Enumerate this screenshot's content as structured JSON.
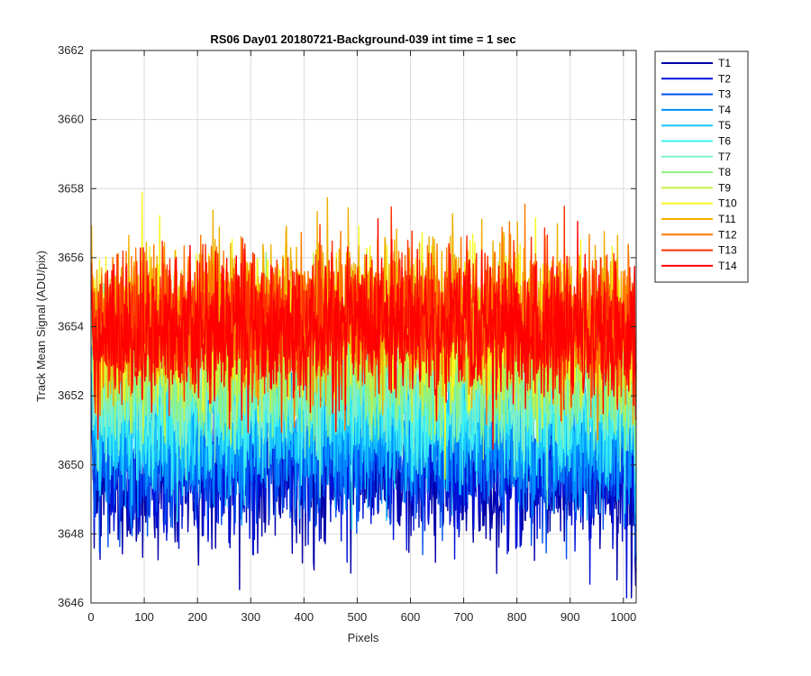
{
  "chart_data": {
    "type": "line",
    "title": "RS06 Day01 20180721-Background-039 int time = 1 sec",
    "xlabel": "Pixels",
    "ylabel": "Track Mean Signal (ADU/pix)",
    "xlim": [
      0,
      1024
    ],
    "ylim": [
      3646,
      3662
    ],
    "xticks": [
      0,
      100,
      200,
      300,
      400,
      500,
      600,
      700,
      800,
      900,
      1000
    ],
    "yticks": [
      3646,
      3648,
      3650,
      3652,
      3654,
      3656,
      3658,
      3660,
      3662
    ],
    "grid": true,
    "legend_position": "outside-top-right",
    "x_points": 1024,
    "series": [
      {
        "name": "T1",
        "color": "#0000a8",
        "mean": 3649.6,
        "spread": 1.0,
        "edge_low": 3647.3,
        "edge_high": 3651.2
      },
      {
        "name": "T2",
        "color": "#0012d8",
        "mean": 3649.9,
        "spread": 1.0,
        "edge_low": 3647.5,
        "edge_high": 3651.6
      },
      {
        "name": "T3",
        "color": "#0050f0",
        "mean": 3650.3,
        "spread": 1.0,
        "edge_low": 3648.0,
        "edge_high": 3652.0
      },
      {
        "name": "T4",
        "color": "#0090ff",
        "mean": 3650.8,
        "spread": 1.0,
        "edge_low": 3648.5,
        "edge_high": 3652.6
      },
      {
        "name": "T5",
        "color": "#18c8ff",
        "mean": 3651.3,
        "spread": 1.0,
        "edge_low": 3649.2,
        "edge_high": 3653.0
      },
      {
        "name": "T6",
        "color": "#40f0f0",
        "mean": 3651.7,
        "spread": 1.0,
        "edge_low": 3649.6,
        "edge_high": 3653.4
      },
      {
        "name": "T7",
        "color": "#80f0c8",
        "mean": 3652.2,
        "spread": 1.0,
        "edge_low": 3650.2,
        "edge_high": 3654.0
      },
      {
        "name": "T8",
        "color": "#90f080",
        "mean": 3652.7,
        "spread": 1.0,
        "edge_low": 3650.8,
        "edge_high": 3654.6
      },
      {
        "name": "T9",
        "color": "#c8f040",
        "mean": 3653.3,
        "spread": 1.0,
        "edge_low": 3651.3,
        "edge_high": 3655.2
      },
      {
        "name": "T10",
        "color": "#f8f820",
        "mean": 3654.0,
        "spread": 1.0,
        "edge_low": 3652.0,
        "edge_high": 3656.0
      },
      {
        "name": "T11",
        "color": "#f0b000",
        "mean": 3654.4,
        "spread": 1.0,
        "edge_low": 3652.4,
        "edge_high": 3656.4
      },
      {
        "name": "T12",
        "color": "#ff7800",
        "mean": 3654.2,
        "spread": 1.0,
        "edge_low": 3652.4,
        "edge_high": 3656.0
      },
      {
        "name": "T13",
        "color": "#ff3000",
        "mean": 3654.1,
        "spread": 1.0,
        "edge_low": 3652.4,
        "edge_high": 3655.8
      },
      {
        "name": "T14",
        "color": "#ff0000",
        "mean": 3653.8,
        "spread": 1.0,
        "edge_low": 3652.2,
        "edge_high": 3655.4
      }
    ]
  }
}
